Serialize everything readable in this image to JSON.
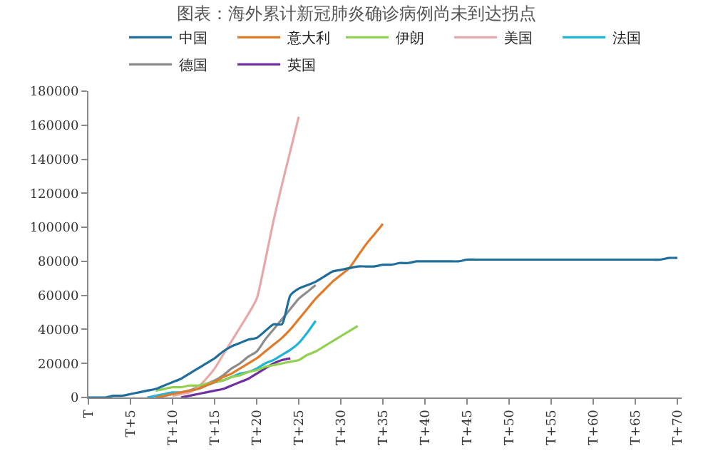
{
  "chart_data": {
    "type": "line",
    "title": "图表：海外累计新冠肺炎确诊病例尚未到达拐点",
    "categories": [
      "T",
      null,
      null,
      null,
      null,
      "T+5",
      null,
      null,
      null,
      null,
      "T+10",
      null,
      null,
      null,
      null,
      "T+15",
      null,
      null,
      null,
      null,
      "T+20",
      null,
      null,
      null,
      null,
      "T+25",
      null,
      null,
      null,
      null,
      "T+30",
      null,
      null,
      null,
      null,
      "T+35",
      null,
      null,
      null,
      null,
      "T+40",
      null,
      null,
      null,
      null,
      "T+45",
      null,
      null,
      null,
      null,
      "T+50",
      null,
      null,
      null,
      null,
      "T+55",
      null,
      null,
      null,
      null,
      "T+60",
      null,
      null,
      null,
      null,
      "T+65",
      null,
      null,
      null,
      null,
      "T+70"
    ],
    "series": [
      {
        "name": "中国",
        "color": "#1f6e9c",
        "values": [
          0,
          0,
          0,
          1000,
          1000,
          2000,
          3000,
          4000,
          5000,
          7000,
          9000,
          11000,
          14000,
          17000,
          20000,
          23000,
          27000,
          30000,
          32000,
          34000,
          35000,
          39000,
          43000,
          43000,
          60000,
          64000,
          66000,
          68000,
          71000,
          74000,
          75000,
          76000,
          77000,
          77000,
          77000,
          78000,
          78000,
          79000,
          79000,
          80000,
          80000,
          80000,
          80000,
          80000,
          80000,
          81000,
          81000,
          81000,
          81000,
          81000,
          81000,
          81000,
          81000,
          81000,
          81000,
          81000,
          81000,
          81000,
          81000,
          81000,
          81000,
          81000,
          81000,
          81000,
          81000,
          81000,
          81000,
          81000,
          81000,
          82000,
          82000
        ]
      },
      {
        "name": "意大利",
        "color": "#e07b2a",
        "values": [
          null,
          null,
          null,
          null,
          null,
          null,
          null,
          null,
          0,
          1000,
          2000,
          3000,
          4000,
          5000,
          7000,
          9000,
          12000,
          14000,
          17000,
          20000,
          23000,
          27000,
          31000,
          35000,
          40000,
          46000,
          52000,
          58000,
          63000,
          68000,
          72000,
          76000,
          83000,
          90000,
          96000,
          102000,
          null,
          null,
          null,
          null,
          null,
          null,
          null,
          null,
          null,
          null,
          null,
          null,
          null,
          null,
          null,
          null,
          null,
          null,
          null,
          null,
          null,
          null,
          null,
          null,
          null,
          null,
          null,
          null,
          null,
          null,
          null,
          null,
          null,
          null,
          null
        ]
      },
      {
        "name": "伊朗",
        "color": "#92d050",
        "values": [
          null,
          null,
          null,
          null,
          null,
          null,
          null,
          null,
          4000,
          5000,
          6000,
          6000,
          7000,
          7000,
          8000,
          9000,
          10000,
          12000,
          13000,
          15000,
          16000,
          18000,
          19000,
          20000,
          21000,
          22000,
          25000,
          27000,
          30000,
          33000,
          36000,
          39000,
          42000,
          null,
          null,
          null,
          null,
          null,
          null,
          null,
          null,
          null,
          null,
          null,
          null,
          null,
          null,
          null,
          null,
          null,
          null,
          null,
          null,
          null,
          null,
          null,
          null,
          null,
          null,
          null,
          null,
          null,
          null,
          null,
          null,
          null,
          null,
          null,
          null,
          null,
          null
        ]
      },
      {
        "name": "美国",
        "color": "#e6a8a8",
        "values": [
          null,
          null,
          null,
          null,
          null,
          null,
          null,
          null,
          null,
          null,
          1000,
          2000,
          3000,
          6000,
          11000,
          17000,
          25000,
          33000,
          41000,
          49000,
          58000,
          80000,
          104000,
          125000,
          145000,
          165000,
          null,
          null,
          null,
          null,
          null,
          null,
          null,
          null,
          null,
          null,
          null,
          null,
          null,
          null,
          null,
          null,
          null,
          null,
          null,
          null,
          null,
          null,
          null,
          null,
          null,
          null,
          null,
          null,
          null,
          null,
          null,
          null,
          null,
          null,
          null,
          null,
          null,
          null,
          null,
          null,
          null,
          null,
          null,
          null,
          null
        ]
      },
      {
        "name": "法国",
        "color": "#1fb5d6",
        "values": [
          null,
          null,
          null,
          null,
          null,
          null,
          null,
          0,
          1000,
          2000,
          3000,
          3000,
          4000,
          5000,
          7000,
          9000,
          10000,
          12000,
          14000,
          15000,
          17000,
          20000,
          22000,
          25000,
          28000,
          32000,
          38000,
          45000,
          null,
          null,
          null,
          null,
          null,
          null,
          null,
          null,
          null,
          null,
          null,
          null,
          null,
          null,
          null,
          null,
          null,
          null,
          null,
          null,
          null,
          null,
          null,
          null,
          null,
          null,
          null,
          null,
          null,
          null,
          null,
          null,
          null,
          null,
          null,
          null,
          null,
          null,
          null,
          null,
          null,
          null,
          null
        ]
      },
      {
        "name": "德国",
        "color": "#8c8c8c",
        "values": [
          null,
          null,
          null,
          null,
          null,
          null,
          null,
          null,
          0,
          1000,
          2000,
          3000,
          4000,
          6000,
          8000,
          10000,
          13000,
          17000,
          20000,
          24000,
          27000,
          34000,
          40000,
          46000,
          52000,
          58000,
          62000,
          66000,
          null,
          null,
          null,
          null,
          null,
          null,
          null,
          null,
          null,
          null,
          null,
          null,
          null,
          null,
          null,
          null,
          null,
          null,
          null,
          null,
          null,
          null,
          null,
          null,
          null,
          null,
          null,
          null,
          null,
          null,
          null,
          null,
          null,
          null,
          null,
          null,
          null,
          null,
          null,
          null,
          null,
          null,
          null
        ]
      },
      {
        "name": "英国",
        "color": "#7030a0",
        "values": [
          null,
          null,
          null,
          null,
          null,
          null,
          null,
          null,
          null,
          null,
          null,
          0,
          1000,
          2000,
          3000,
          4000,
          5000,
          7000,
          9000,
          11000,
          14000,
          17000,
          20000,
          22000,
          23000,
          null,
          null,
          null,
          null,
          null,
          null,
          null,
          null,
          null,
          null,
          null,
          null,
          null,
          null,
          null,
          null,
          null,
          null,
          null,
          null,
          null,
          null,
          null,
          null,
          null,
          null,
          null,
          null,
          null,
          null,
          null,
          null,
          null,
          null,
          null,
          null,
          null,
          null,
          null,
          null,
          null,
          null,
          null,
          null,
          null,
          null
        ]
      }
    ],
    "ylim": [
      0,
      180000
    ],
    "yticks": [
      0,
      20000,
      40000,
      60000,
      80000,
      100000,
      120000,
      140000,
      160000,
      180000
    ],
    "grid": false,
    "legend": "top",
    "marker": "none",
    "line_style": "solid"
  }
}
